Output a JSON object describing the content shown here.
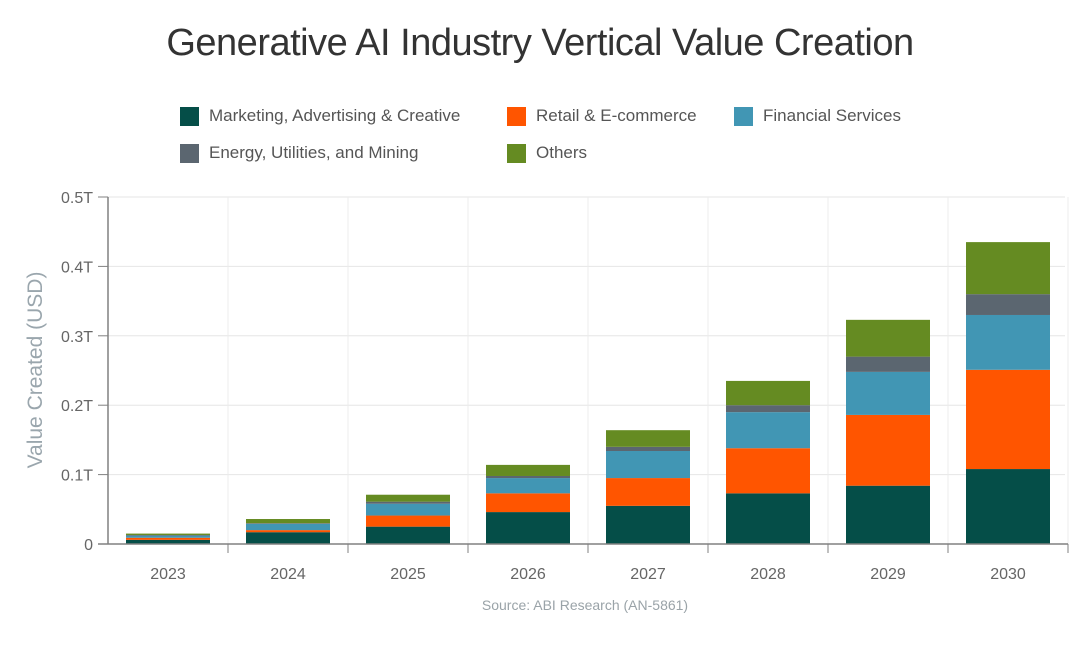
{
  "chart_data": {
    "type": "bar",
    "stacked": true,
    "title": "Generative AI Industry Vertical Value Creation",
    "xlabel": "",
    "ylabel": "Value Created (USD)",
    "ylim": [
      0,
      0.5
    ],
    "y_unit_suffix": "T",
    "yticks": [
      {
        "value": 0,
        "label": "0"
      },
      {
        "value": 0.1,
        "label": "0.1T"
      },
      {
        "value": 0.2,
        "label": "0.2T"
      },
      {
        "value": 0.3,
        "label": "0.3T"
      },
      {
        "value": 0.4,
        "label": "0.4T"
      },
      {
        "value": 0.5,
        "label": "0.5T"
      }
    ],
    "grid": true,
    "legend_position": "top",
    "categories": [
      "2023",
      "2024",
      "2025",
      "2026",
      "2027",
      "2028",
      "2029",
      "2030"
    ],
    "series": [
      {
        "name": "Marketing, Advertising & Creative",
        "color": "#054e48",
        "values": [
          0.006,
          0.017,
          0.025,
          0.046,
          0.055,
          0.073,
          0.084,
          0.108
        ]
      },
      {
        "name": "Retail & E-commerce",
        "color": "#ff5500",
        "values": [
          0.003,
          0.003,
          0.016,
          0.027,
          0.04,
          0.065,
          0.102,
          0.143
        ]
      },
      {
        "name": "Financial Services",
        "color": "#4196b4",
        "values": [
          0.003,
          0.009,
          0.017,
          0.022,
          0.039,
          0.052,
          0.062,
          0.079
        ]
      },
      {
        "name": "Energy, Utilities, and Mining",
        "color": "#5b6670",
        "values": [
          0.001,
          0.001,
          0.003,
          0.003,
          0.006,
          0.01,
          0.022,
          0.03
        ]
      },
      {
        "name": "Others",
        "color": "#658b22",
        "values": [
          0.002,
          0.006,
          0.01,
          0.016,
          0.024,
          0.035,
          0.053,
          0.075
        ]
      }
    ],
    "source": "Source: ABI Research (AN-5861)"
  }
}
